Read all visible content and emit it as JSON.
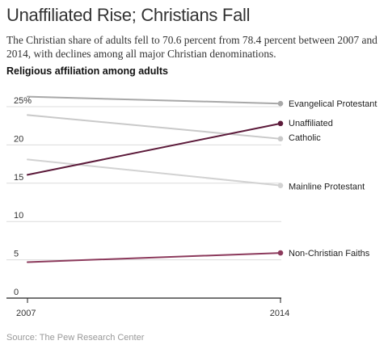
{
  "title": "Unaffiliated Rise; Christians Fall",
  "subtitle": "The Christian share of adults fell to 70.6 percent from 78.4 percent between 2007 and 2014, with declines among all major Christian denominations.",
  "section_label": "Religious affiliation among adults",
  "source": "Source: The Pew Research Center",
  "chart_data": {
    "type": "line",
    "x": [
      "2007",
      "2014"
    ],
    "ylim": [
      0,
      28
    ],
    "yticks": [
      0,
      5,
      10,
      15,
      20,
      25
    ],
    "ytick_labels": [
      "0",
      "5",
      "10",
      "15",
      "20",
      "25%"
    ],
    "grid": true,
    "series": [
      {
        "name": "Evangelical Protestant",
        "values": [
          26.3,
          25.4
        ],
        "color": "#a8a8a8"
      },
      {
        "name": "Catholic",
        "values": [
          23.9,
          20.8
        ],
        "color": "#c9c9c9"
      },
      {
        "name": "Mainline Protestant",
        "values": [
          18.1,
          14.7
        ],
        "color": "#d2d2d2"
      },
      {
        "name": "Unaffiliated",
        "values": [
          16.1,
          22.8
        ],
        "color": "#5c1a3a"
      },
      {
        "name": "Non-Christian Faiths",
        "values": [
          4.7,
          5.9
        ],
        "color": "#8c3a5c"
      }
    ]
  }
}
